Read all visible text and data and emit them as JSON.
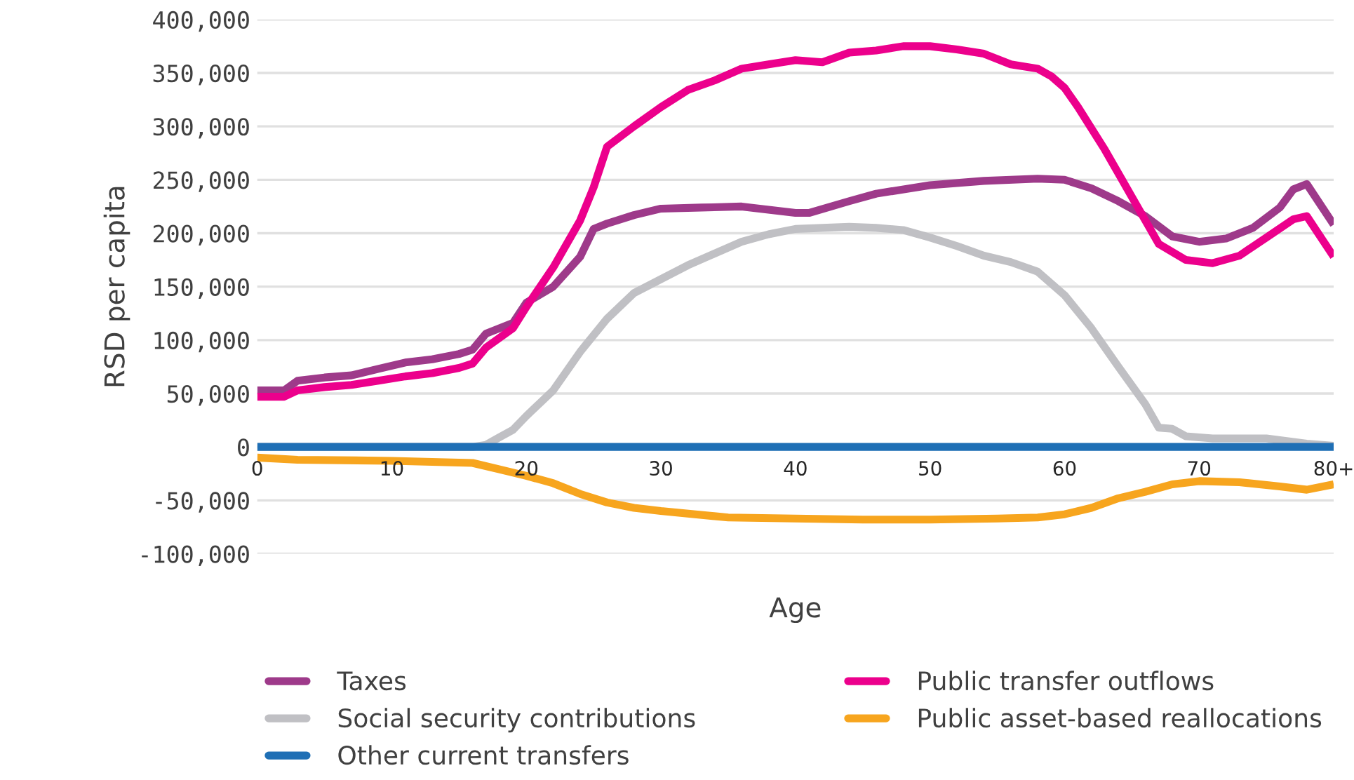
{
  "chart_data": {
    "type": "line",
    "xlabel": "Age",
    "ylabel": "RSD per capita",
    "xlim": [
      0,
      80
    ],
    "xticks": [
      0,
      10,
      20,
      30,
      40,
      50,
      60,
      70,
      {
        "value": 80,
        "label": "80+"
      }
    ],
    "ylim": [
      -100000,
      400000
    ],
    "yticks": [
      {
        "value": -100000,
        "label": "-100,000"
      },
      {
        "value": -50000,
        "label": "-50,000"
      },
      {
        "value": 0,
        "label": "0"
      },
      {
        "value": 50000,
        "label": "50,000"
      },
      {
        "value": 100000,
        "label": "100,000"
      },
      {
        "value": 150000,
        "label": "150,000"
      },
      {
        "value": 200000,
        "label": "200,000"
      },
      {
        "value": 250000,
        "label": "250,000"
      },
      {
        "value": 300000,
        "label": "300,000"
      },
      {
        "value": 350000,
        "label": "350,000"
      },
      {
        "value": 400000,
        "label": "400,000"
      }
    ],
    "grid": "y",
    "legend": "bottom",
    "marker": "none",
    "line_style": "solid",
    "series": [
      {
        "name": "Taxes",
        "color": "#9e3a8a",
        "x": [
          0,
          2,
          3,
          5,
          7,
          9,
          11,
          13,
          15,
          16,
          17,
          19,
          20,
          22,
          24,
          25,
          26,
          28,
          30,
          33,
          36,
          38,
          40,
          41,
          44,
          46,
          50,
          54,
          58,
          60,
          62,
          64,
          66,
          68,
          70,
          72,
          74,
          76,
          77,
          78,
          80
        ],
        "values": [
          53000,
          53000,
          62000,
          65000,
          67000,
          73000,
          79000,
          82000,
          87000,
          91000,
          106000,
          116000,
          135000,
          150000,
          178000,
          204000,
          209000,
          217000,
          223000,
          224000,
          225000,
          222000,
          219000,
          219000,
          230000,
          237000,
          245000,
          249000,
          251000,
          250000,
          242000,
          230000,
          216000,
          197000,
          192000,
          195000,
          205000,
          224000,
          241000,
          246000,
          208000
        ]
      },
      {
        "name": "Public transfer outflows",
        "color": "#ec008c",
        "x": [
          0,
          2,
          3,
          5,
          7,
          9,
          11,
          13,
          15,
          16,
          17,
          19,
          20,
          22,
          24,
          25,
          26,
          28,
          30,
          32,
          34,
          36,
          38,
          40,
          42,
          44,
          46,
          48,
          50,
          52,
          54,
          56,
          58,
          59,
          60,
          61,
          63,
          65,
          67,
          69,
          71,
          73,
          75,
          77,
          78,
          80
        ],
        "values": [
          47000,
          47000,
          53000,
          56000,
          58000,
          62000,
          66000,
          69000,
          74000,
          78000,
          93000,
          111000,
          131000,
          168000,
          212000,
          243000,
          281000,
          300000,
          318000,
          334000,
          343000,
          354000,
          358000,
          362000,
          360000,
          369000,
          371000,
          375000,
          375000,
          372000,
          368000,
          358000,
          354000,
          347000,
          336000,
          318000,
          278000,
          234000,
          190000,
          175000,
          172000,
          179000,
          196000,
          213000,
          216000,
          178000
        ]
      },
      {
        "name": "Social security contributions",
        "color": "#c0c0c4",
        "x": [
          0,
          16,
          17,
          18,
          19,
          20,
          22,
          24,
          26,
          28,
          30,
          32,
          34,
          36,
          38,
          40,
          42,
          44,
          46,
          48,
          50,
          52,
          54,
          56,
          58,
          60,
          62,
          64,
          66,
          67,
          68,
          69,
          71,
          75,
          78,
          80
        ],
        "values": [
          0,
          0,
          2000,
          9000,
          16000,
          29000,
          53000,
          89000,
          120000,
          144000,
          157000,
          170000,
          181000,
          192000,
          199000,
          204000,
          205000,
          206000,
          205000,
          203000,
          196000,
          188000,
          179000,
          173000,
          164000,
          142000,
          111000,
          75000,
          40000,
          18000,
          17000,
          10000,
          8000,
          8000,
          3000,
          1000
        ]
      },
      {
        "name": "Public asset-based reallocations",
        "color": "#f7a51e",
        "x": [
          0,
          3,
          10,
          16,
          18,
          20,
          22,
          24,
          26,
          28,
          30,
          35,
          40,
          45,
          50,
          55,
          58,
          60,
          62,
          64,
          66,
          68,
          70,
          73,
          76,
          78,
          80
        ],
        "values": [
          -10000,
          -12000,
          -13000,
          -15000,
          -21000,
          -27000,
          -34000,
          -44000,
          -52000,
          -57000,
          -60000,
          -66000,
          -67000,
          -68000,
          -68000,
          -67000,
          -66000,
          -63000,
          -57000,
          -48000,
          -42000,
          -35000,
          -32000,
          -33000,
          -37000,
          -40000,
          -35000
        ]
      },
      {
        "name": "Other current transfers",
        "color": "#1f6fb5",
        "x": [
          0,
          80
        ],
        "values": [
          0,
          0
        ]
      }
    ]
  }
}
